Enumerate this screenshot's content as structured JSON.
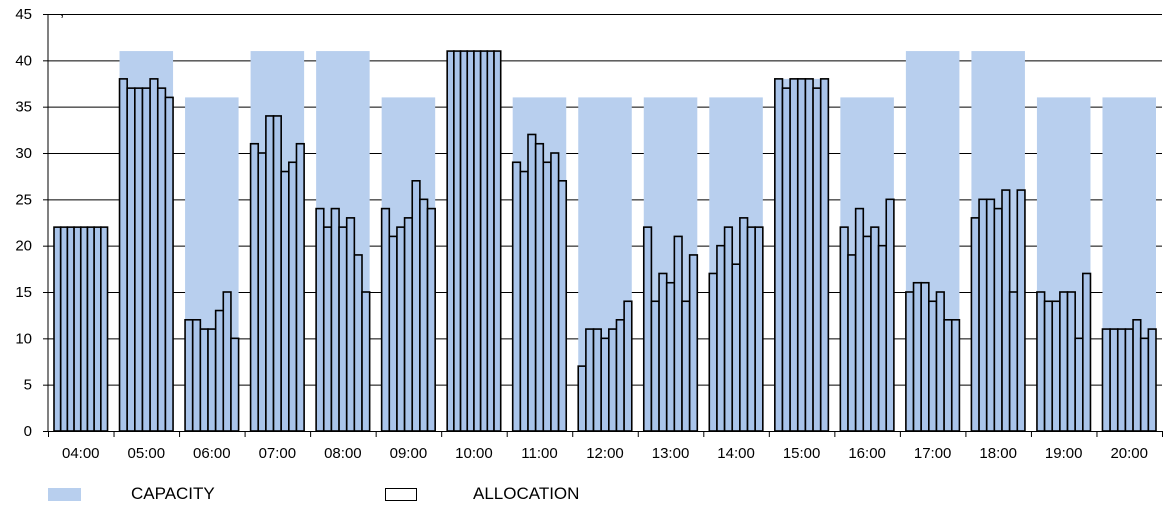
{
  "chart_data": {
    "type": "bar",
    "categories": [
      "04:00",
      "05:00",
      "06:00",
      "07:00",
      "08:00",
      "09:00",
      "10:00",
      "11:00",
      "12:00",
      "13:00",
      "14:00",
      "15:00",
      "16:00",
      "17:00",
      "18:00",
      "19:00",
      "20:00"
    ],
    "ylim": [
      0,
      45
    ],
    "yticks": [
      0,
      5,
      10,
      15,
      20,
      25,
      30,
      35,
      40,
      45
    ],
    "title_fragment": ", ",
    "series": [
      {
        "name": "CAPACITY",
        "color": "#b8cfee",
        "values": [
          22,
          41,
          36,
          41,
          41,
          36,
          41,
          36,
          36,
          36,
          36,
          38,
          36,
          41,
          41,
          36,
          36
        ]
      },
      {
        "name": "ALLOCATION",
        "color": "#a9c4ea",
        "sub_values": [
          [
            22,
            22,
            22,
            22,
            22,
            22,
            22,
            22
          ],
          [
            38,
            37,
            37,
            37,
            38,
            37,
            36
          ],
          [
            12,
            12,
            11,
            11,
            13,
            15,
            10
          ],
          [
            31,
            30,
            34,
            34,
            28,
            29,
            31
          ],
          [
            24,
            22,
            24,
            22,
            23,
            19,
            15
          ],
          [
            24,
            21,
            22,
            23,
            27,
            25,
            24
          ],
          [
            41,
            41,
            41,
            41,
            41,
            41,
            41,
            41
          ],
          [
            29,
            28,
            32,
            31,
            29,
            30,
            27
          ],
          [
            7,
            11,
            11,
            10,
            11,
            12,
            14
          ],
          [
            22,
            14,
            17,
            16,
            21,
            14,
            19
          ],
          [
            17,
            20,
            22,
            18,
            23,
            22,
            22
          ],
          [
            38,
            37,
            38,
            38,
            38,
            37,
            38
          ],
          [
            22,
            19,
            24,
            21,
            22,
            20,
            25
          ],
          [
            15,
            16,
            16,
            14,
            15,
            12,
            12
          ],
          [
            23,
            25,
            25,
            24,
            26,
            15,
            26
          ],
          [
            15,
            14,
            14,
            15,
            15,
            10,
            17
          ],
          [
            11,
            11,
            11,
            11,
            12,
            10,
            11
          ]
        ]
      }
    ]
  },
  "legend": {
    "capacity_label": "CAPACITY",
    "allocation_label": "ALLOCATION"
  }
}
